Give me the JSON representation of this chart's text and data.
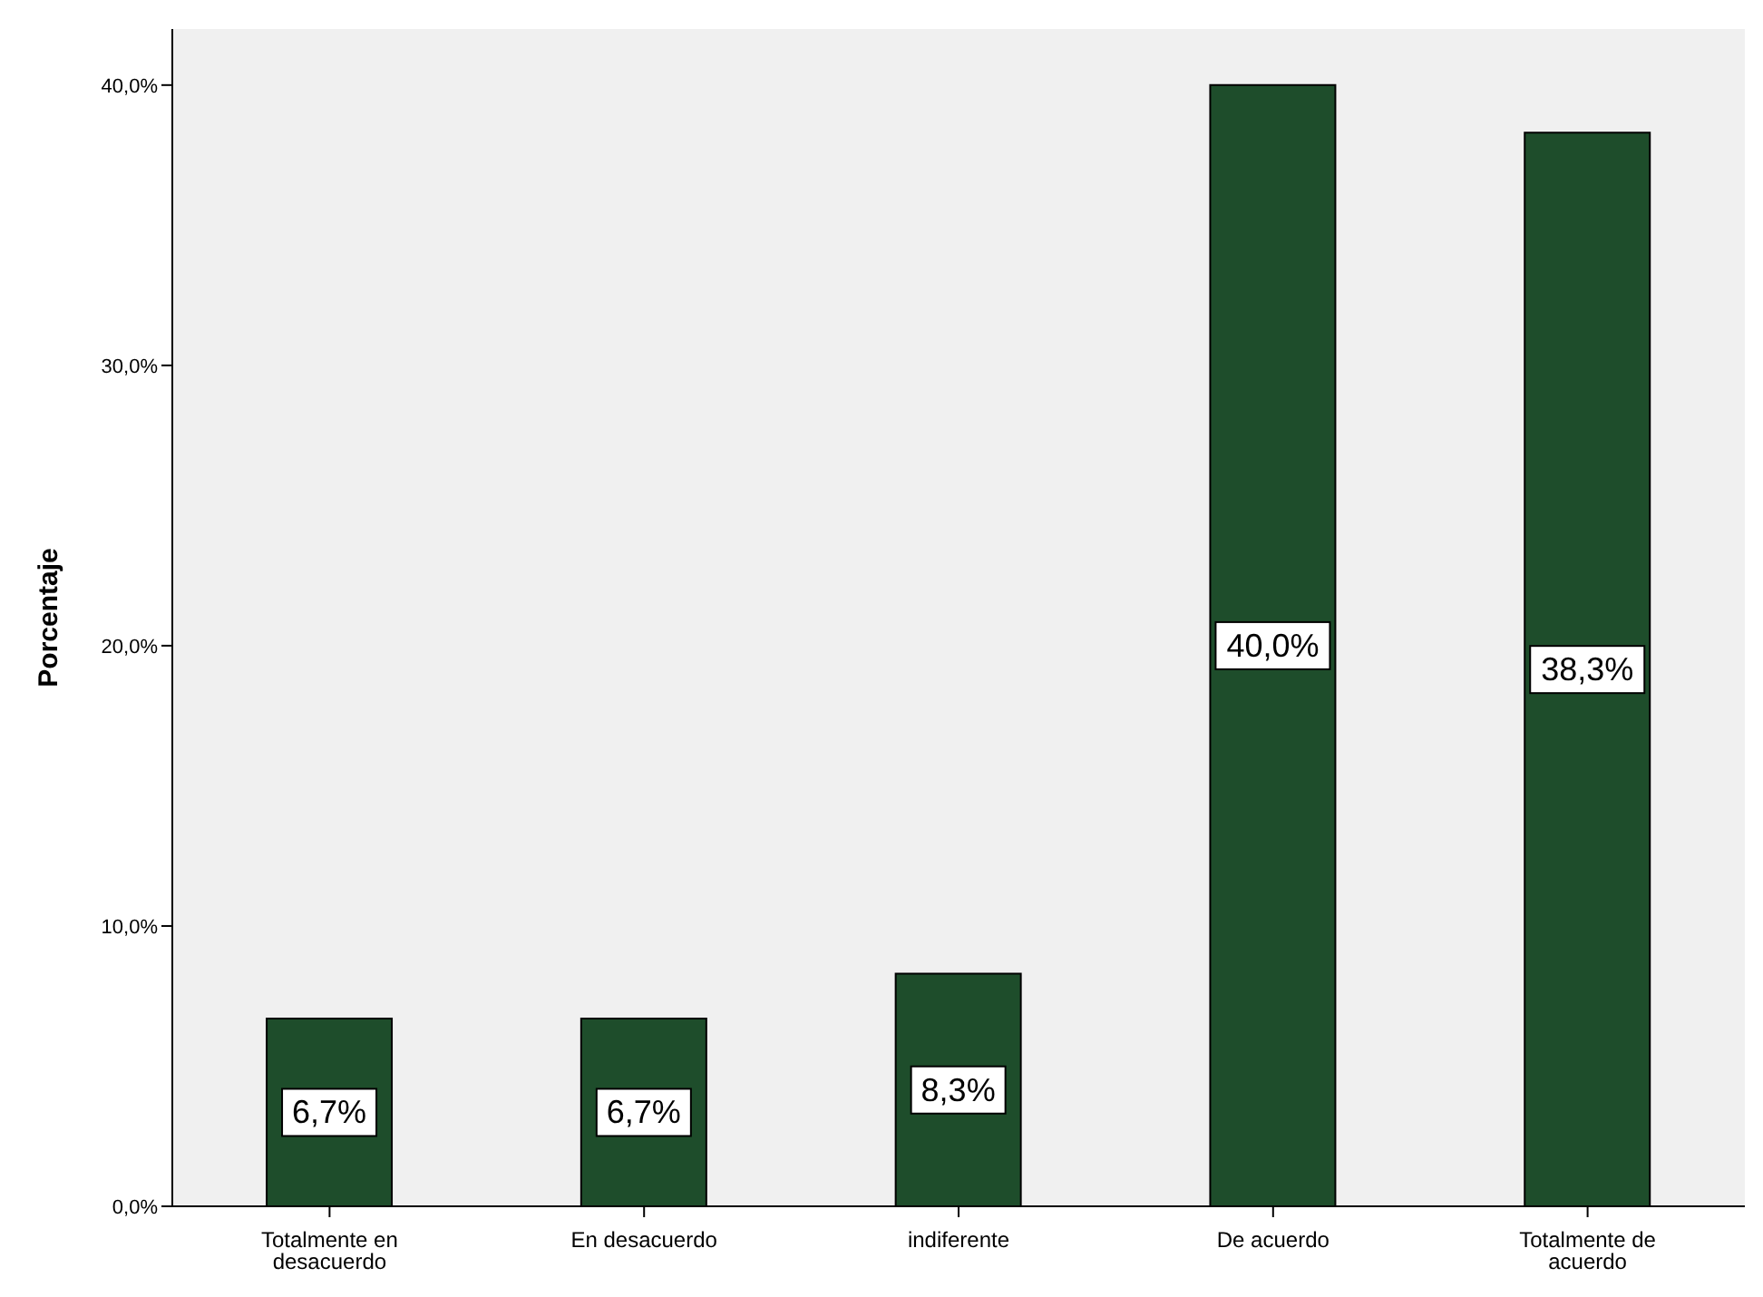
{
  "chart_data": {
    "type": "bar",
    "ylabel": "Porcentaje",
    "categories": [
      "Totalmente en desacuerdo",
      "En desacuerdo",
      "indiferente",
      "De acuerdo",
      "Totalmente de acuerdo"
    ],
    "values": [
      6.7,
      6.7,
      8.3,
      40.0,
      38.3
    ],
    "value_labels": [
      "6,7%",
      "6,7%",
      "8,3%",
      "40,0%",
      "38,3%"
    ],
    "color": "#1e4d2b",
    "ylim": [
      0,
      42
    ],
    "yticks": [
      {
        "value": 0,
        "label": "0,0%"
      },
      {
        "value": 10,
        "label": "10,0%"
      },
      {
        "value": 20,
        "label": "20,0%"
      },
      {
        "value": 30,
        "label": "30,0%"
      },
      {
        "value": 40,
        "label": "40,0%"
      }
    ],
    "grid": false,
    "legend": false
  }
}
